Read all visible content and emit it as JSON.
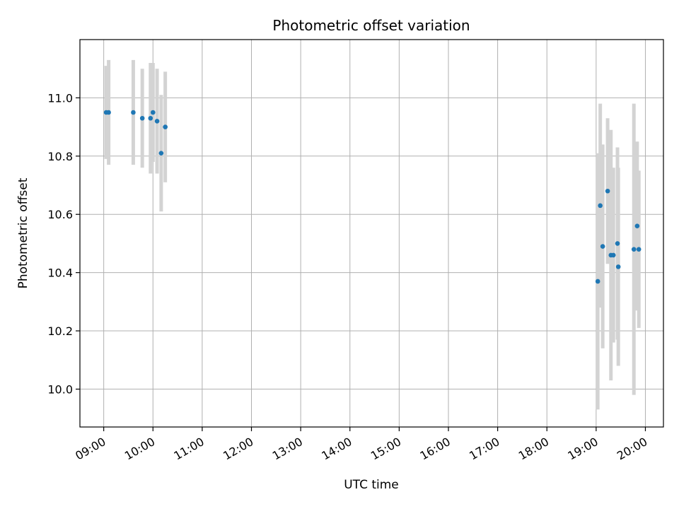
{
  "chart_data": {
    "type": "scatter",
    "title": "Photometric offset variation",
    "xlabel": "UTC time",
    "ylabel": "Photometric offset",
    "x_ticks": [
      "09:00",
      "10:00",
      "11:00",
      "12:00",
      "13:00",
      "14:00",
      "15:00",
      "16:00",
      "17:00",
      "18:00",
      "19:00",
      "20:00"
    ],
    "y_ticks": [
      "10.0",
      "10.2",
      "10.4",
      "10.6",
      "10.8",
      "11.0"
    ],
    "xlim": [
      "08:31",
      "20:22"
    ],
    "ylim": [
      9.87,
      11.2
    ],
    "grid": true,
    "legend": "none",
    "colors": {
      "points": "#1f77b4",
      "errorbars": "#d3d3d3",
      "grid": "#b0b0b0"
    },
    "points": [
      {
        "x": "09:03",
        "y": 10.95,
        "yerr": 0.16
      },
      {
        "x": "09:06",
        "y": 10.95,
        "yerr": 0.18
      },
      {
        "x": "09:36",
        "y": 10.95,
        "yerr": 0.18
      },
      {
        "x": "09:47",
        "y": 10.93,
        "yerr": 0.17
      },
      {
        "x": "09:57",
        "y": 10.93,
        "yerr": 0.19
      },
      {
        "x": "10:00",
        "y": 10.95,
        "yerr": 0.17
      },
      {
        "x": "10:05",
        "y": 10.92,
        "yerr": 0.18
      },
      {
        "x": "10:10",
        "y": 10.81,
        "yerr": 0.2
      },
      {
        "x": "10:15",
        "y": 10.9,
        "yerr": 0.19
      },
      {
        "x": "19:02",
        "y": 10.37,
        "yerr": 0.44
      },
      {
        "x": "19:05",
        "y": 10.63,
        "yerr": 0.35
      },
      {
        "x": "19:08",
        "y": 10.49,
        "yerr": 0.35
      },
      {
        "x": "19:14",
        "y": 10.68,
        "yerr": 0.25
      },
      {
        "x": "19:18",
        "y": 10.46,
        "yerr": 0.43
      },
      {
        "x": "19:21",
        "y": 10.46,
        "yerr": 0.3
      },
      {
        "x": "19:26",
        "y": 10.5,
        "yerr": 0.33
      },
      {
        "x": "19:27",
        "y": 10.42,
        "yerr": 0.34
      },
      {
        "x": "19:46",
        "y": 10.48,
        "yerr": 0.5
      },
      {
        "x": "19:50",
        "y": 10.56,
        "yerr": 0.29
      },
      {
        "x": "19:52",
        "y": 10.48,
        "yerr": 0.27
      }
    ]
  }
}
